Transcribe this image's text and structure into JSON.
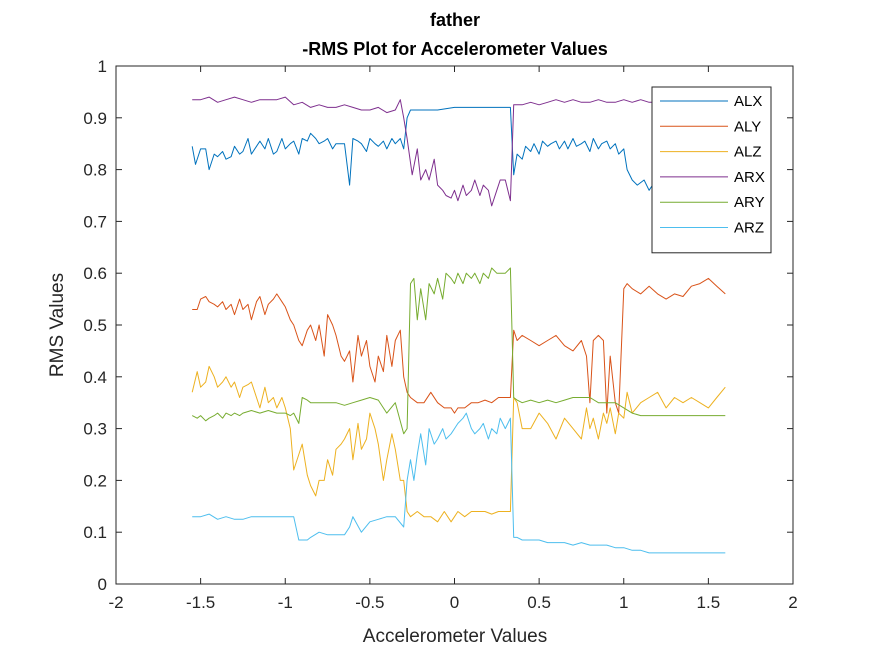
{
  "chart_data": {
    "type": "line",
    "title": "father",
    "subtitle": "-RMS Plot for Accelerometer Values",
    "xlabel": "Accelerometer Values",
    "ylabel": "RMS Values",
    "xlim": [
      -2,
      2
    ],
    "ylim": [
      0,
      1
    ],
    "xticks": [
      -2,
      -1.5,
      -1,
      -0.5,
      0,
      0.5,
      1,
      1.5,
      2
    ],
    "xtick_labels": [
      "-2",
      "-1.5",
      "-1",
      "-0.5",
      "0",
      "0.5",
      "1",
      "1.5",
      "2"
    ],
    "yticks": [
      0,
      0.1,
      0.2,
      0.3,
      0.4,
      0.5,
      0.6,
      0.7,
      0.8,
      0.9,
      1
    ],
    "ytick_labels": [
      "0",
      "0.1",
      "0.2",
      "0.3",
      "0.4",
      "0.5",
      "0.6",
      "0.7",
      "0.8",
      "0.9",
      "1"
    ],
    "grid": false,
    "legend_position": "top-right",
    "series": [
      {
        "name": "ALX",
        "color": "#0072BD",
        "x": [
          -1.55,
          -1.53,
          -1.5,
          -1.47,
          -1.45,
          -1.42,
          -1.4,
          -1.37,
          -1.35,
          -1.32,
          -1.3,
          -1.27,
          -1.25,
          -1.22,
          -1.2,
          -1.17,
          -1.15,
          -1.12,
          -1.1,
          -1.07,
          -1.05,
          -1.02,
          -1.0,
          -0.97,
          -0.95,
          -0.92,
          -0.9,
          -0.87,
          -0.85,
          -0.82,
          -0.8,
          -0.77,
          -0.75,
          -0.72,
          -0.7,
          -0.67,
          -0.65,
          -0.62,
          -0.6,
          -0.57,
          -0.55,
          -0.52,
          -0.5,
          -0.47,
          -0.45,
          -0.42,
          -0.4,
          -0.37,
          -0.35,
          -0.32,
          -0.3,
          -0.28,
          -0.26,
          -0.2,
          -0.1,
          0.0,
          0.1,
          0.2,
          0.3,
          0.33,
          0.35,
          0.37,
          0.4,
          0.42,
          0.45,
          0.47,
          0.5,
          0.52,
          0.55,
          0.57,
          0.6,
          0.62,
          0.65,
          0.67,
          0.7,
          0.72,
          0.75,
          0.77,
          0.8,
          0.82,
          0.85,
          0.87,
          0.9,
          0.92,
          0.95,
          0.97,
          1.0,
          1.02,
          1.05,
          1.08,
          1.12,
          1.15,
          1.17
        ],
        "y": [
          0.845,
          0.81,
          0.84,
          0.84,
          0.8,
          0.83,
          0.825,
          0.835,
          0.82,
          0.825,
          0.845,
          0.83,
          0.835,
          0.86,
          0.83,
          0.845,
          0.855,
          0.84,
          0.86,
          0.83,
          0.835,
          0.86,
          0.84,
          0.85,
          0.855,
          0.83,
          0.86,
          0.855,
          0.87,
          0.86,
          0.85,
          0.855,
          0.86,
          0.84,
          0.85,
          0.85,
          0.85,
          0.77,
          0.86,
          0.855,
          0.85,
          0.835,
          0.86,
          0.85,
          0.845,
          0.855,
          0.84,
          0.86,
          0.85,
          0.86,
          0.84,
          0.9,
          0.915,
          0.915,
          0.915,
          0.92,
          0.92,
          0.92,
          0.92,
          0.92,
          0.79,
          0.83,
          0.82,
          0.845,
          0.835,
          0.85,
          0.83,
          0.855,
          0.845,
          0.85,
          0.855,
          0.84,
          0.855,
          0.84,
          0.86,
          0.845,
          0.85,
          0.855,
          0.835,
          0.86,
          0.84,
          0.85,
          0.855,
          0.84,
          0.85,
          0.83,
          0.84,
          0.8,
          0.78,
          0.77,
          0.78,
          0.76,
          0.77
        ]
      },
      {
        "name": "ALY",
        "color": "#D95319",
        "x": [
          -1.55,
          -1.52,
          -1.5,
          -1.47,
          -1.45,
          -1.42,
          -1.4,
          -1.37,
          -1.35,
          -1.32,
          -1.3,
          -1.27,
          -1.25,
          -1.22,
          -1.2,
          -1.17,
          -1.15,
          -1.12,
          -1.1,
          -1.07,
          -1.05,
          -1.02,
          -1.0,
          -0.97,
          -0.95,
          -0.92,
          -0.9,
          -0.87,
          -0.85,
          -0.82,
          -0.8,
          -0.77,
          -0.75,
          -0.72,
          -0.7,
          -0.67,
          -0.65,
          -0.62,
          -0.6,
          -0.57,
          -0.55,
          -0.52,
          -0.5,
          -0.47,
          -0.45,
          -0.42,
          -0.4,
          -0.37,
          -0.35,
          -0.32,
          -0.3,
          -0.28,
          -0.26,
          -0.22,
          -0.18,
          -0.14,
          -0.1,
          -0.06,
          -0.02,
          0.0,
          0.02,
          0.06,
          0.1,
          0.14,
          0.18,
          0.22,
          0.26,
          0.3,
          0.33,
          0.35,
          0.37,
          0.4,
          0.45,
          0.5,
          0.55,
          0.6,
          0.65,
          0.7,
          0.75,
          0.78,
          0.8,
          0.82,
          0.85,
          0.88,
          0.9,
          0.92,
          0.95,
          0.97,
          1.0,
          1.02,
          1.05,
          1.1,
          1.15,
          1.2,
          1.25,
          1.3,
          1.35,
          1.4,
          1.45,
          1.5,
          1.55,
          1.6
        ],
        "y": [
          0.53,
          0.53,
          0.55,
          0.555,
          0.545,
          0.54,
          0.535,
          0.545,
          0.53,
          0.54,
          0.52,
          0.55,
          0.53,
          0.54,
          0.51,
          0.545,
          0.555,
          0.52,
          0.54,
          0.55,
          0.56,
          0.545,
          0.535,
          0.51,
          0.5,
          0.47,
          0.46,
          0.49,
          0.5,
          0.47,
          0.5,
          0.44,
          0.52,
          0.5,
          0.48,
          0.44,
          0.43,
          0.45,
          0.39,
          0.48,
          0.44,
          0.47,
          0.42,
          0.39,
          0.44,
          0.41,
          0.48,
          0.42,
          0.47,
          0.49,
          0.4,
          0.37,
          0.36,
          0.35,
          0.35,
          0.37,
          0.35,
          0.34,
          0.34,
          0.33,
          0.34,
          0.34,
          0.35,
          0.35,
          0.355,
          0.35,
          0.36,
          0.36,
          0.36,
          0.49,
          0.47,
          0.48,
          0.47,
          0.46,
          0.47,
          0.48,
          0.46,
          0.45,
          0.47,
          0.44,
          0.35,
          0.47,
          0.48,
          0.47,
          0.33,
          0.44,
          0.35,
          0.33,
          0.57,
          0.58,
          0.57,
          0.56,
          0.575,
          0.56,
          0.55,
          0.56,
          0.555,
          0.575,
          0.58,
          0.59,
          0.575,
          0.56
        ]
      },
      {
        "name": "ALZ",
        "color": "#EDB120",
        "x": [
          -1.55,
          -1.52,
          -1.5,
          -1.47,
          -1.45,
          -1.42,
          -1.4,
          -1.37,
          -1.35,
          -1.32,
          -1.3,
          -1.27,
          -1.25,
          -1.22,
          -1.2,
          -1.17,
          -1.15,
          -1.12,
          -1.1,
          -1.07,
          -1.05,
          -1.02,
          -1.0,
          -0.97,
          -0.95,
          -0.92,
          -0.9,
          -0.87,
          -0.85,
          -0.82,
          -0.8,
          -0.77,
          -0.75,
          -0.72,
          -0.7,
          -0.67,
          -0.65,
          -0.62,
          -0.6,
          -0.57,
          -0.55,
          -0.52,
          -0.5,
          -0.47,
          -0.45,
          -0.42,
          -0.4,
          -0.37,
          -0.35,
          -0.32,
          -0.3,
          -0.28,
          -0.26,
          -0.22,
          -0.18,
          -0.14,
          -0.1,
          -0.06,
          -0.02,
          0.0,
          0.02,
          0.06,
          0.1,
          0.14,
          0.18,
          0.22,
          0.26,
          0.3,
          0.33,
          0.35,
          0.37,
          0.4,
          0.45,
          0.5,
          0.55,
          0.6,
          0.65,
          0.7,
          0.75,
          0.78,
          0.8,
          0.82,
          0.85,
          0.88,
          0.9,
          0.92,
          0.95,
          0.97,
          1.0,
          1.02,
          1.05,
          1.1,
          1.15,
          1.2,
          1.25,
          1.3,
          1.35,
          1.4,
          1.45,
          1.5,
          1.55,
          1.6
        ],
        "y": [
          0.37,
          0.41,
          0.38,
          0.39,
          0.42,
          0.4,
          0.38,
          0.39,
          0.4,
          0.38,
          0.39,
          0.36,
          0.38,
          0.385,
          0.39,
          0.36,
          0.34,
          0.38,
          0.35,
          0.36,
          0.34,
          0.36,
          0.34,
          0.3,
          0.22,
          0.25,
          0.27,
          0.21,
          0.19,
          0.17,
          0.2,
          0.2,
          0.24,
          0.21,
          0.26,
          0.27,
          0.28,
          0.3,
          0.24,
          0.31,
          0.26,
          0.28,
          0.33,
          0.3,
          0.27,
          0.2,
          0.24,
          0.29,
          0.26,
          0.2,
          0.2,
          0.14,
          0.13,
          0.14,
          0.13,
          0.13,
          0.12,
          0.14,
          0.12,
          0.13,
          0.14,
          0.13,
          0.14,
          0.14,
          0.14,
          0.135,
          0.14,
          0.14,
          0.14,
          0.36,
          0.35,
          0.3,
          0.3,
          0.33,
          0.31,
          0.28,
          0.32,
          0.3,
          0.28,
          0.34,
          0.3,
          0.32,
          0.28,
          0.33,
          0.31,
          0.34,
          0.29,
          0.33,
          0.32,
          0.37,
          0.33,
          0.35,
          0.36,
          0.37,
          0.34,
          0.36,
          0.35,
          0.36,
          0.35,
          0.34,
          0.36,
          0.38
        ]
      },
      {
        "name": "ARX",
        "color": "#7E2F8E",
        "x": [
          -1.55,
          -1.5,
          -1.45,
          -1.4,
          -1.35,
          -1.3,
          -1.25,
          -1.2,
          -1.15,
          -1.1,
          -1.05,
          -1.0,
          -0.95,
          -0.9,
          -0.85,
          -0.8,
          -0.75,
          -0.7,
          -0.65,
          -0.6,
          -0.55,
          -0.5,
          -0.45,
          -0.4,
          -0.35,
          -0.32,
          -0.3,
          -0.28,
          -0.25,
          -0.22,
          -0.2,
          -0.17,
          -0.15,
          -0.12,
          -0.1,
          -0.07,
          -0.05,
          -0.02,
          0.0,
          0.02,
          0.05,
          0.07,
          0.1,
          0.12,
          0.15,
          0.17,
          0.2,
          0.22,
          0.25,
          0.27,
          0.3,
          0.33,
          0.35,
          0.4,
          0.45,
          0.5,
          0.55,
          0.6,
          0.65,
          0.7,
          0.75,
          0.8,
          0.85,
          0.9,
          0.95,
          1.0,
          1.05,
          1.1,
          1.15,
          1.17
        ],
        "y": [
          0.935,
          0.935,
          0.94,
          0.93,
          0.935,
          0.94,
          0.935,
          0.93,
          0.935,
          0.935,
          0.935,
          0.94,
          0.925,
          0.93,
          0.92,
          0.925,
          0.92,
          0.92,
          0.925,
          0.92,
          0.915,
          0.915,
          0.92,
          0.91,
          0.915,
          0.935,
          0.9,
          0.86,
          0.79,
          0.84,
          0.78,
          0.8,
          0.78,
          0.82,
          0.77,
          0.76,
          0.75,
          0.745,
          0.76,
          0.74,
          0.77,
          0.75,
          0.76,
          0.78,
          0.75,
          0.77,
          0.76,
          0.73,
          0.76,
          0.78,
          0.78,
          0.74,
          0.925,
          0.925,
          0.93,
          0.925,
          0.93,
          0.935,
          0.93,
          0.935,
          0.93,
          0.93,
          0.935,
          0.93,
          0.93,
          0.935,
          0.93,
          0.935,
          0.93,
          0.93
        ]
      },
      {
        "name": "ARY",
        "color": "#77AC30",
        "x": [
          -1.55,
          -1.52,
          -1.5,
          -1.47,
          -1.45,
          -1.42,
          -1.4,
          -1.37,
          -1.35,
          -1.32,
          -1.3,
          -1.27,
          -1.25,
          -1.2,
          -1.15,
          -1.1,
          -1.05,
          -1.0,
          -0.97,
          -0.95,
          -0.92,
          -0.9,
          -0.87,
          -0.85,
          -0.8,
          -0.75,
          -0.7,
          -0.65,
          -0.6,
          -0.55,
          -0.5,
          -0.45,
          -0.4,
          -0.35,
          -0.3,
          -0.28,
          -0.26,
          -0.24,
          -0.22,
          -0.2,
          -0.17,
          -0.15,
          -0.12,
          -0.1,
          -0.07,
          -0.05,
          -0.02,
          0.0,
          0.02,
          0.05,
          0.07,
          0.1,
          0.12,
          0.15,
          0.17,
          0.2,
          0.22,
          0.25,
          0.27,
          0.3,
          0.33,
          0.35,
          0.37,
          0.4,
          0.45,
          0.5,
          0.55,
          0.6,
          0.65,
          0.7,
          0.75,
          0.8,
          0.85,
          0.9,
          0.95,
          1.0,
          1.05,
          1.1,
          1.2,
          1.3,
          1.4,
          1.5,
          1.6
        ],
        "y": [
          0.325,
          0.32,
          0.325,
          0.315,
          0.32,
          0.325,
          0.33,
          0.32,
          0.33,
          0.325,
          0.33,
          0.325,
          0.33,
          0.335,
          0.33,
          0.335,
          0.33,
          0.33,
          0.325,
          0.33,
          0.31,
          0.36,
          0.355,
          0.35,
          0.35,
          0.35,
          0.35,
          0.345,
          0.35,
          0.355,
          0.36,
          0.355,
          0.33,
          0.35,
          0.29,
          0.3,
          0.58,
          0.59,
          0.51,
          0.57,
          0.51,
          0.58,
          0.56,
          0.59,
          0.55,
          0.6,
          0.59,
          0.58,
          0.6,
          0.58,
          0.6,
          0.59,
          0.6,
          0.58,
          0.6,
          0.59,
          0.61,
          0.6,
          0.6,
          0.6,
          0.61,
          0.36,
          0.355,
          0.35,
          0.355,
          0.35,
          0.355,
          0.35,
          0.355,
          0.36,
          0.36,
          0.36,
          0.35,
          0.35,
          0.35,
          0.34,
          0.33,
          0.325,
          0.325,
          0.325,
          0.325,
          0.325,
          0.325
        ]
      },
      {
        "name": "ARZ",
        "color": "#4DBEEE",
        "x": [
          -1.55,
          -1.5,
          -1.45,
          -1.4,
          -1.35,
          -1.3,
          -1.25,
          -1.2,
          -1.15,
          -1.1,
          -1.05,
          -1.0,
          -0.97,
          -0.95,
          -0.92,
          -0.9,
          -0.87,
          -0.85,
          -0.8,
          -0.75,
          -0.7,
          -0.65,
          -0.62,
          -0.6,
          -0.55,
          -0.5,
          -0.45,
          -0.4,
          -0.35,
          -0.3,
          -0.28,
          -0.26,
          -0.24,
          -0.22,
          -0.2,
          -0.17,
          -0.15,
          -0.12,
          -0.1,
          -0.07,
          -0.05,
          -0.02,
          0.0,
          0.02,
          0.05,
          0.07,
          0.1,
          0.12,
          0.15,
          0.17,
          0.2,
          0.22,
          0.25,
          0.27,
          0.3,
          0.33,
          0.35,
          0.37,
          0.4,
          0.45,
          0.5,
          0.55,
          0.6,
          0.65,
          0.7,
          0.75,
          0.8,
          0.85,
          0.9,
          0.95,
          1.0,
          1.05,
          1.1,
          1.15,
          1.2,
          1.3,
          1.4,
          1.5,
          1.6
        ],
        "y": [
          0.13,
          0.13,
          0.135,
          0.125,
          0.13,
          0.125,
          0.125,
          0.13,
          0.13,
          0.13,
          0.13,
          0.13,
          0.13,
          0.13,
          0.085,
          0.085,
          0.085,
          0.09,
          0.1,
          0.095,
          0.095,
          0.095,
          0.11,
          0.13,
          0.1,
          0.12,
          0.125,
          0.13,
          0.13,
          0.11,
          0.2,
          0.24,
          0.2,
          0.25,
          0.29,
          0.23,
          0.3,
          0.27,
          0.28,
          0.3,
          0.28,
          0.29,
          0.3,
          0.31,
          0.32,
          0.33,
          0.3,
          0.29,
          0.3,
          0.31,
          0.28,
          0.3,
          0.29,
          0.32,
          0.3,
          0.32,
          0.09,
          0.09,
          0.085,
          0.085,
          0.085,
          0.08,
          0.08,
          0.08,
          0.075,
          0.08,
          0.075,
          0.075,
          0.075,
          0.07,
          0.07,
          0.065,
          0.065,
          0.06,
          0.06,
          0.06,
          0.06,
          0.06,
          0.06
        ]
      }
    ]
  }
}
